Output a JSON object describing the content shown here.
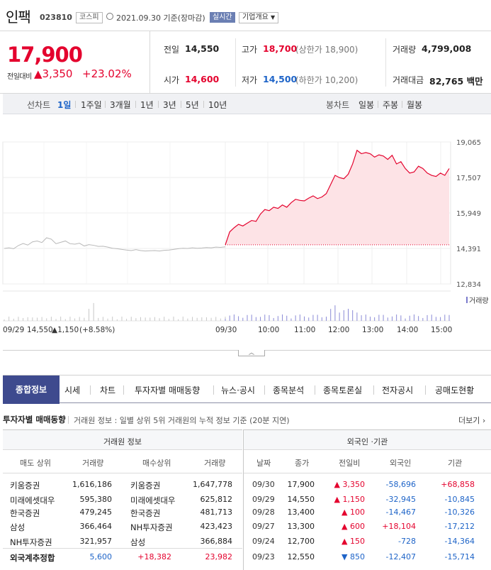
{
  "header": {
    "name": "인팩",
    "code": "023810",
    "market": "코스피",
    "date": "2021.09.30 기준(장마감)",
    "realtime": "실시간",
    "company_info": "기업개요"
  },
  "summary": {
    "price": "17,900",
    "change_label": "전일대비",
    "change_amount": "▲3,350",
    "change_pct": "+23.02%",
    "prev_close_label": "전일",
    "prev_close": "14,550",
    "open_label": "시가",
    "open": "14,600",
    "high_label": "고가",
    "high": "18,700",
    "upper_limit": "(상한가 18,900)",
    "low_label": "저가",
    "low": "14,500",
    "lower_limit": "(하한가 10,200)",
    "volume_label": "거래량",
    "volume": "4,799,008",
    "amount_label": "거래대금",
    "amount": "82,765 백만"
  },
  "chart_tabs": {
    "line_label": "선차트",
    "line": [
      "1일",
      "1주일",
      "3개월",
      "1년",
      "3년",
      "5년",
      "10년"
    ],
    "candle_label": "봉차트",
    "candle": [
      "일봉",
      "주봉",
      "월봉"
    ]
  },
  "chart_data": {
    "type": "area",
    "y_ticks": [
      "19,065",
      "17,507",
      "15,949",
      "14,391",
      "12,834"
    ],
    "ylim": [
      12834,
      19065
    ],
    "volume_label": "거래량",
    "prev_day": "09/29",
    "prev_close": "14,550",
    "prev_change": "▲1,150",
    "prev_pct": "(+8.58%)",
    "x_ticks": [
      "09/30",
      "10:00",
      "11:00",
      "12:00",
      "13:00",
      "14:00",
      "15:00"
    ],
    "prev_day_series": [
      14390,
      14420,
      14380,
      14520,
      14610,
      14540,
      14680,
      14720,
      14650,
      14860,
      14800,
      14600,
      14660,
      14720,
      14600,
      14580,
      14620,
      14500,
      14560,
      14530,
      14480,
      14490,
      14450,
      14400,
      14380,
      14350,
      14320,
      14300,
      14340,
      14300,
      14280,
      14290,
      14300,
      14280,
      14310,
      14320,
      14350,
      14380,
      14400,
      14390,
      14420,
      14400,
      14410,
      14430,
      14420,
      14450,
      14440,
      14460
    ],
    "today_series": [
      14550,
      15120,
      15300,
      15450,
      15380,
      15500,
      15620,
      15580,
      15900,
      16100,
      16050,
      16200,
      16150,
      16300,
      16200,
      16400,
      16550,
      16500,
      16480,
      16600,
      16700,
      16580,
      16650,
      16800,
      17200,
      17600,
      17500,
      17450,
      17650,
      18100,
      18700,
      18550,
      18600,
      18550,
      18400,
      18500,
      18450,
      18300,
      18480,
      18100,
      18200,
      17900,
      17700,
      17750,
      18000,
      17900,
      17700,
      17600,
      17550,
      17700,
      17600,
      17900
    ]
  },
  "main_tabs": [
    "종합정보",
    "시세",
    "차트",
    "투자자별 매매동향",
    "뉴스·공시",
    "종목분석",
    "종목토론실",
    "전자공시",
    "공매도현황"
  ],
  "investor": {
    "title": "투자자별 매매동향",
    "desc": "거래원 정보 : 일별 상위 5위 거래원의 누적 정보 기준 (20분 지연)",
    "more": "더보기",
    "broker_header": "거래원 정보",
    "foreign_header": "외국인 ·기관",
    "broker_cols": [
      "매도 상위",
      "거래량",
      "매수상위",
      "거래량"
    ],
    "foreign_cols": [
      "날짜",
      "종가",
      "전일비",
      "외국인",
      "기관"
    ],
    "brokers": [
      [
        "키움증권",
        "1,616,186",
        "키움증권",
        "1,647,778"
      ],
      [
        "미래에셋대우",
        "595,380",
        "미래에셋대우",
        "625,812"
      ],
      [
        "한국증권",
        "479,245",
        "한국증권",
        "481,713"
      ],
      [
        "삼성",
        "366,464",
        "NH투자증권",
        "423,423"
      ],
      [
        "NH투자증권",
        "321,957",
        "삼성",
        "366,884"
      ],
      [
        "외국계추정합",
        "5,600",
        "+18,382",
        "23,982"
      ]
    ],
    "foreign": [
      [
        "09/30",
        "17,900",
        "▲ 3,350",
        "-58,696",
        "+68,858"
      ],
      [
        "09/29",
        "14,550",
        "▲ 1,150",
        "-32,945",
        "-10,845"
      ],
      [
        "09/28",
        "13,400",
        "▲ 100",
        "-14,467",
        "-10,326"
      ],
      [
        "09/27",
        "13,300",
        "▲ 600",
        "+18,104",
        "-17,212"
      ],
      [
        "09/24",
        "12,700",
        "▲ 150",
        "-728",
        "-14,364"
      ],
      [
        "09/23",
        "12,550",
        "▼ 850",
        "-12,407",
        "-15,714"
      ]
    ]
  }
}
